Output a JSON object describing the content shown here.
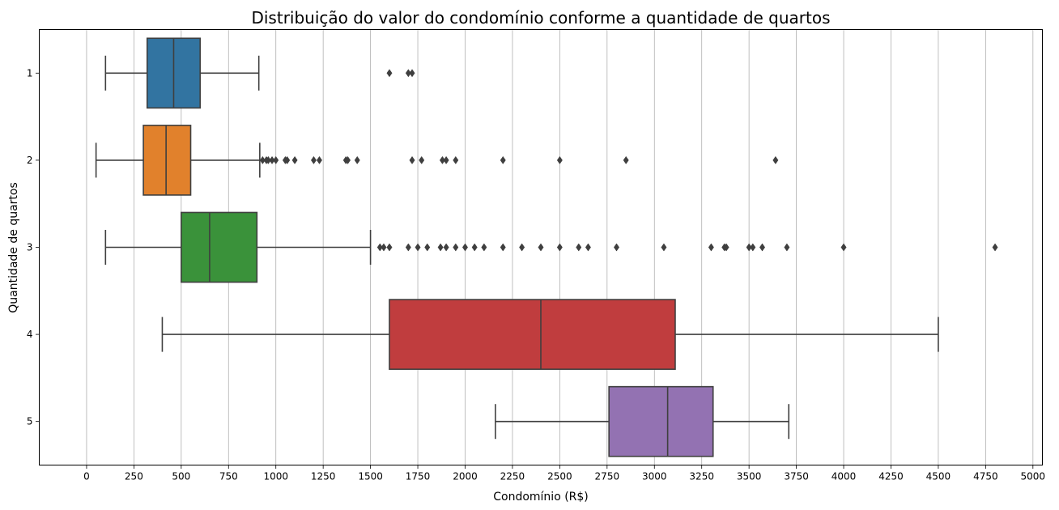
{
  "chart_data": {
    "type": "boxplot",
    "orientation": "horizontal",
    "title": "Distribuição do valor do condomínio conforme a quantidade de quartos",
    "xlabel": "Condomínio (R$)",
    "ylabel": "Quantidade de quartos",
    "xlim": [
      -250,
      5050
    ],
    "x_ticks": [
      0,
      250,
      500,
      750,
      1000,
      1250,
      1500,
      1750,
      2000,
      2250,
      2500,
      2750,
      3000,
      3250,
      3500,
      3750,
      4000,
      4250,
      4500,
      4750,
      5000
    ],
    "grid": "vertical",
    "categories": [
      "1",
      "2",
      "3",
      "4",
      "5"
    ],
    "boxes": [
      {
        "category": "1",
        "color": "#3274a1",
        "whislo": 100,
        "q1": 320,
        "median": 460,
        "q3": 600,
        "whishi": 910,
        "fliers": [
          1600,
          1700,
          1720
        ]
      },
      {
        "category": "2",
        "color": "#e1812c",
        "whislo": 50,
        "q1": 300,
        "median": 420,
        "q3": 550,
        "whishi": 915,
        "fliers": [
          930,
          950,
          960,
          980,
          1000,
          1050,
          1060,
          1100,
          1200,
          1230,
          1370,
          1380,
          1430,
          1720,
          1770,
          1880,
          1900,
          1950,
          2200,
          2500,
          2850,
          3640
        ]
      },
      {
        "category": "3",
        "color": "#3a923a",
        "whislo": 100,
        "q1": 500,
        "median": 650,
        "q3": 900,
        "whishi": 1500,
        "fliers": [
          1550,
          1570,
          1600,
          1700,
          1750,
          1800,
          1870,
          1900,
          1950,
          2000,
          2050,
          2100,
          2200,
          2300,
          2400,
          2500,
          2600,
          2650,
          2800,
          3050,
          3300,
          3370,
          3380,
          3500,
          3520,
          3570,
          3700,
          4000,
          4800
        ]
      },
      {
        "category": "4",
        "color": "#c03d3e",
        "whislo": 400,
        "q1": 1600,
        "median": 2400,
        "q3": 3110,
        "whishi": 4500,
        "fliers": []
      },
      {
        "category": "5",
        "color": "#9372b2",
        "whislo": 2160,
        "q1": 2760,
        "median": 3070,
        "q3": 3310,
        "whishi": 3710,
        "fliers": []
      }
    ]
  }
}
